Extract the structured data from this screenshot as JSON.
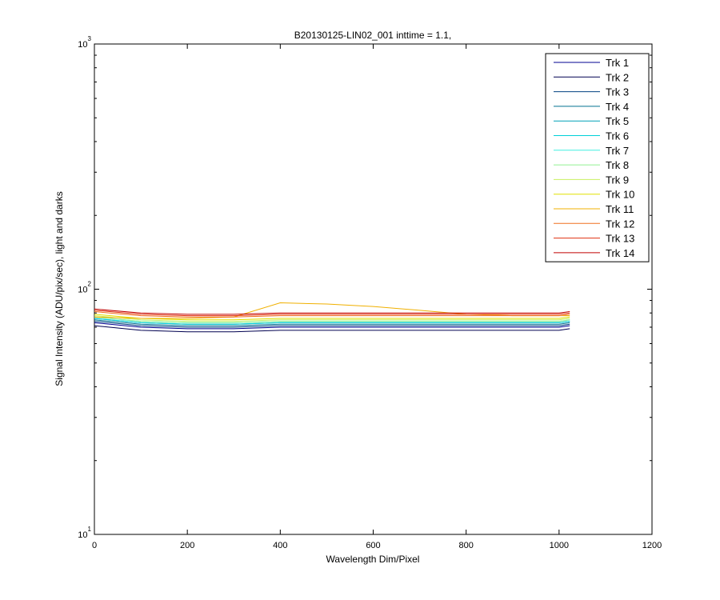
{
  "chart_data": {
    "type": "line",
    "title": "B20130125-LIN02_001 inttime = 1.1,",
    "x_label": "Wavelength Dim/Pixel",
    "y_label": "Signal Intensity (ADU/pix/sec), light and darks",
    "x": [
      0,
      100,
      200,
      300,
      400,
      500,
      600,
      700,
      800,
      900,
      1000,
      1023
    ],
    "series": [
      {
        "name": "Trk 1",
        "color": "#000090",
        "values": [
          73,
          70,
          69,
          69,
          70,
          70,
          70,
          70,
          70,
          70,
          70,
          71
        ]
      },
      {
        "name": "Trk 2",
        "color": "#000050",
        "values": [
          71,
          68,
          67,
          67,
          68,
          68,
          68,
          68,
          68,
          68,
          68,
          69
        ]
      },
      {
        "name": "Trk 3",
        "color": "#004080",
        "values": [
          74,
          71,
          70,
          70,
          71,
          71,
          71,
          71,
          71,
          71,
          71,
          72
        ]
      },
      {
        "name": "Trk 4",
        "color": "#00708f",
        "values": [
          75,
          72,
          71,
          71,
          72,
          72,
          72,
          72,
          72,
          72,
          72,
          73
        ]
      },
      {
        "name": "Trk 5",
        "color": "#00a0b8",
        "values": [
          76,
          73,
          72,
          72,
          73,
          73,
          73,
          73,
          73,
          73,
          73,
          74
        ]
      },
      {
        "name": "Trk 6",
        "color": "#00d0d8",
        "values": [
          76,
          73,
          72,
          72,
          73,
          73,
          73,
          73,
          73,
          73,
          73,
          74
        ]
      },
      {
        "name": "Trk 7",
        "color": "#40f0e0",
        "values": [
          77,
          74,
          73,
          73,
          74,
          74,
          74,
          74,
          74,
          74,
          74,
          75
        ]
      },
      {
        "name": "Trk 8",
        "color": "#90f090",
        "values": [
          77,
          74,
          73,
          73,
          74,
          74,
          74,
          74,
          74,
          74,
          74,
          75
        ]
      },
      {
        "name": "Trk 9",
        "color": "#c8f060",
        "values": [
          78,
          75,
          74,
          74,
          75,
          75,
          75,
          75,
          75,
          75,
          75,
          76
        ]
      },
      {
        "name": "Trk 10",
        "color": "#e0e000",
        "values": [
          79,
          76,
          75,
          75,
          76,
          76,
          76,
          76,
          76,
          76,
          76,
          77
        ]
      },
      {
        "name": "Trk 11",
        "color": "#f0b000",
        "values": [
          77,
          76,
          76,
          77,
          88,
          87,
          85,
          82,
          79,
          78,
          78,
          78
        ]
      },
      {
        "name": "Trk 12",
        "color": "#f07020",
        "values": [
          81,
          78,
          77,
          77,
          78,
          78,
          78,
          78,
          78,
          78,
          78,
          79
        ]
      },
      {
        "name": "Trk 13",
        "color": "#e03010",
        "values": [
          82,
          79,
          78,
          78,
          79,
          79,
          79,
          79,
          79,
          79,
          79,
          80
        ]
      },
      {
        "name": "Trk 14",
        "color": "#c00000",
        "values": [
          83,
          80,
          79,
          79,
          80,
          80,
          80,
          80,
          80,
          80,
          80,
          81
        ]
      }
    ],
    "xlim": [
      0,
      1200
    ],
    "xticks": [
      0,
      200,
      400,
      600,
      800,
      1000,
      1200
    ],
    "ylim": [
      10,
      1000
    ],
    "yticks": [
      {
        "value": 10,
        "label": "10",
        "sup": "1"
      },
      {
        "value": 100,
        "label": "10",
        "sup": "2"
      },
      {
        "value": 1000,
        "label": "10",
        "sup": "3"
      }
    ],
    "log_y": true,
    "legend": "top-right"
  }
}
